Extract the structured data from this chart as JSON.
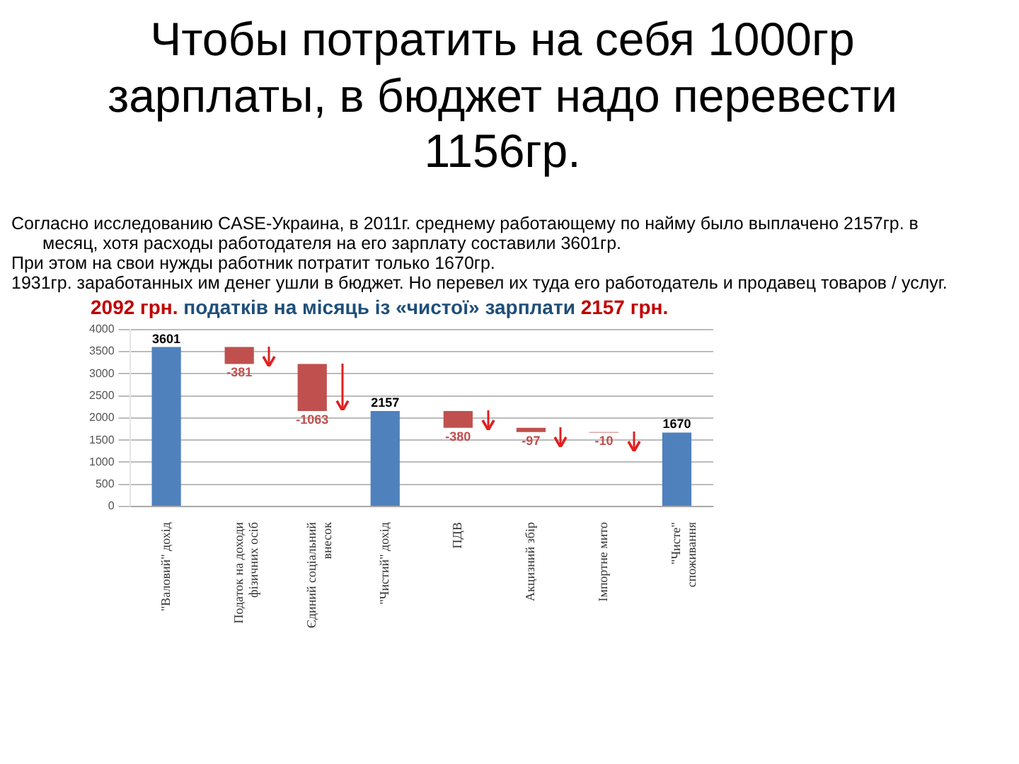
{
  "chart_data": {
    "type": "bar",
    "title": "Чтобы потратить на себя 1000гр зарплаты, в бюджет надо перевести 1156гр.",
    "subtitle": "2092 грн. податків на місяць із «чистої» зарплати 2157 грн.",
    "annotations": [
      "Согласно исследованию CASE-Украина, в 2011г. среднему работающему по найму было выплачено 2157гр. в месяц, хотя расходы работодателя на его зарплату составили 3601гр.",
      "При этом на свои нужды работник потратит только 1670гр.",
      "1931гр. заработанных им денег ушли в бюджет. Но перевел их туда его работодатель и продавец товаров / услуг."
    ],
    "categories": [
      "\"Валовий\" дохід",
      "Податок на доходи фізичних осіб",
      "Єдиний соціальний внесок",
      "\"Чистий\" дохід",
      "ПДВ",
      "Акцизний збір",
      "Імпортне мито",
      "\"Чисте\" споживання"
    ],
    "values": [
      3601,
      -381,
      -1063,
      2157,
      -380,
      -97,
      -10,
      1670
    ],
    "base": [
      0,
      3601,
      3220,
      0,
      2157,
      1777,
      1680,
      0
    ],
    "colors": [
      "#4f81bd",
      "#c0504d",
      "#c0504d",
      "#4f81bd",
      "#c0504d",
      "#c0504d",
      "#c0504d",
      "#4f81bd"
    ],
    "data_labels": true,
    "ylim": [
      0,
      4000
    ],
    "yticks": [
      0,
      500,
      1000,
      1500,
      2000,
      2500,
      3000,
      3500,
      4000
    ],
    "grid": "y",
    "legend": false
  }
}
